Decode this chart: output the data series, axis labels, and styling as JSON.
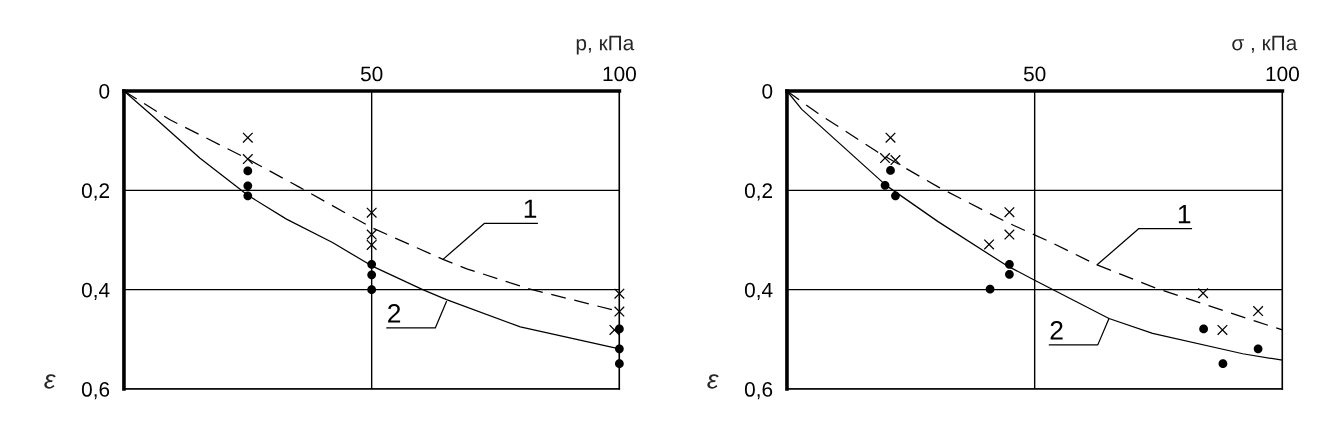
{
  "chart_data": [
    {
      "type": "line",
      "xlabel": "p, кПа",
      "ylabel": "ε",
      "xlim": [
        0,
        100
      ],
      "ylim": [
        0.6,
        0
      ],
      "xticks": [
        50,
        100
      ],
      "yticks": [
        {
          "value": 0,
          "label": "0"
        },
        {
          "value": 0.2,
          "label": "0,2"
        },
        {
          "value": 0.4,
          "label": "0,4"
        },
        {
          "value": 0.6,
          "label": "0,6"
        }
      ],
      "grid": true,
      "series": [
        {
          "color": "#000000",
          "line_style": "dashed",
          "marker": "none",
          "x": [
            0,
            9.3,
            15.3,
            25,
            35.3,
            41.4,
            50,
            64.4,
            69.2,
            82,
            100
          ],
          "values": [
            0,
            0.058,
            0.088,
            0.137,
            0.193,
            0.227,
            0.275,
            0.339,
            0.358,
            0.399,
            0.444
          ]
        },
        {
          "color": "#000000",
          "line_style": "solid",
          "marker": "none",
          "x": [
            0,
            6.2,
            15.3,
            25,
            32.8,
            42.1,
            50,
            60.3,
            65.1,
            80,
            100
          ],
          "values": [
            0,
            0.054,
            0.135,
            0.21,
            0.258,
            0.305,
            0.352,
            0.4,
            0.42,
            0.475,
            0.519
          ]
        },
        {
          "type": "scatter",
          "color": "#000000",
          "marker": "cross",
          "x": [
            25,
            25,
            50,
            50,
            50,
            100,
            100,
            99
          ],
          "values": [
            0.094,
            0.137,
            0.245,
            0.289,
            0.31,
            0.408,
            0.444,
            0.481
          ]
        },
        {
          "type": "scatter",
          "color": "#000000",
          "marker": "circle",
          "x": [
            25,
            25,
            25,
            50,
            50,
            50,
            100,
            100,
            100
          ],
          "values": [
            0.161,
            0.191,
            0.211,
            0.349,
            0.37,
            0.4,
            0.479,
            0.519,
            0.549
          ]
        }
      ],
      "annotations": [
        {
          "text": "1",
          "x": 64.4,
          "y": 0.339
        },
        {
          "text": "2",
          "x": 65.1,
          "y": 0.424
        }
      ]
    },
    {
      "type": "line",
      "xlabel": "σ , кПа",
      "ylabel": "ε",
      "xlim": [
        0,
        100
      ],
      "ylim": [
        0.6,
        0
      ],
      "xticks": [
        50,
        100
      ],
      "yticks": [
        {
          "value": 0,
          "label": "0"
        },
        {
          "value": 0.2,
          "label": "0,2"
        },
        {
          "value": 0.4,
          "label": "0,4"
        },
        {
          "value": 0.6,
          "label": "0,6"
        }
      ],
      "grid": true,
      "series": [
        {
          "color": "#000000",
          "line_style": "dashed",
          "marker": "none",
          "x": [
            0,
            6.1,
            18.3,
            30.5,
            44.1,
            53.6,
            62.3,
            74.5,
            94.7,
            100
          ],
          "values": [
            0,
            0.044,
            0.123,
            0.193,
            0.263,
            0.306,
            0.349,
            0.397,
            0.464,
            0.481
          ]
        },
        {
          "color": "#000000",
          "line_style": "solid",
          "marker": "none",
          "x": [
            0,
            3,
            20,
            30.5,
            44.1,
            50,
            65,
            73.8,
            92,
            100
          ],
          "values": [
            0,
            0.037,
            0.19,
            0.263,
            0.35,
            0.381,
            0.458,
            0.488,
            0.529,
            0.542
          ]
        },
        {
          "type": "scatter",
          "color": "#000000",
          "marker": "cross",
          "x": [
            20.9,
            19.8,
            21.9,
            44.9,
            44.9,
            40.8,
            84.0,
            87.9,
            95.1
          ],
          "values": [
            0.094,
            0.135,
            0.139,
            0.244,
            0.289,
            0.309,
            0.407,
            0.481,
            0.443
          ]
        },
        {
          "type": "scatter",
          "color": "#000000",
          "marker": "circle",
          "x": [
            20.9,
            19.8,
            21.9,
            44.9,
            44.9,
            41.0,
            84.1,
            95.1,
            88.0
          ],
          "values": [
            0.16,
            0.19,
            0.211,
            0.349,
            0.369,
            0.399,
            0.479,
            0.519,
            0.549
          ]
        }
      ],
      "annotations": [
        {
          "text": "1",
          "x": 62.6,
          "y": 0.35
        },
        {
          "text": "2",
          "x": 65,
          "y": 0.458
        }
      ]
    }
  ]
}
